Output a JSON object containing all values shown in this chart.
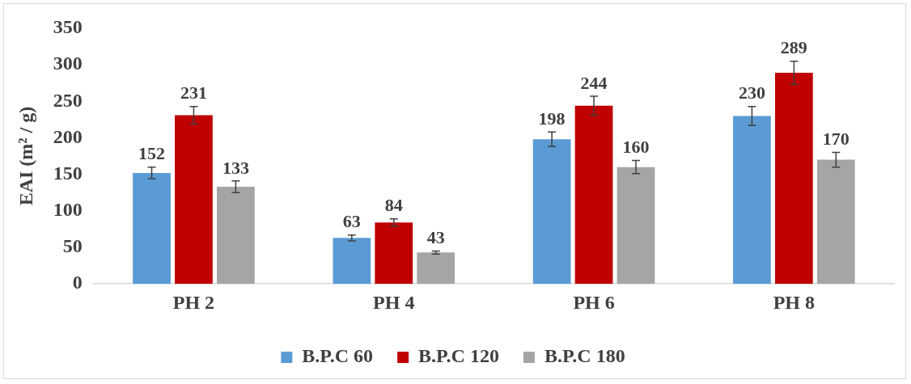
{
  "chart_data": {
    "type": "bar",
    "ylabel": "EAI (m² / g)",
    "categories": [
      "PH 2",
      "PH 4",
      "PH 6",
      "PH 8"
    ],
    "series": [
      {
        "name": "B.P.C 60",
        "color": "#5b9bd5",
        "values": [
          152,
          63,
          198,
          230
        ],
        "errors": [
          8,
          4,
          10,
          13
        ]
      },
      {
        "name": "B.P.C 120",
        "color": "#c00000",
        "values": [
          231,
          84,
          244,
          289
        ],
        "errors": [
          12,
          5,
          13,
          16
        ]
      },
      {
        "name": "B.P.C 180",
        "color": "#a5a5a5",
        "values": [
          133,
          43,
          160,
          170
        ],
        "errors": [
          8,
          2,
          9,
          10
        ]
      }
    ],
    "ylim": [
      0,
      350
    ],
    "yticks": [
      0,
      50,
      100,
      150,
      200,
      250,
      300,
      350
    ],
    "grid": false,
    "legend": "bottom",
    "data_labels": true
  }
}
